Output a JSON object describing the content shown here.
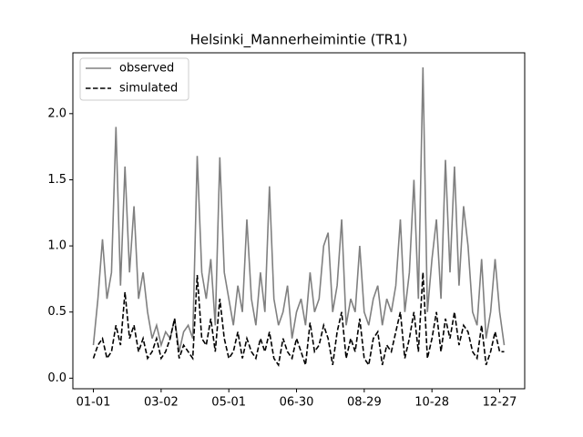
{
  "chart_data": {
    "type": "line",
    "title": "Helsinki_Mannerheimintie (TR1)",
    "x": [
      "01-01",
      "01-05",
      "01-09",
      "01-13",
      "01-17",
      "01-21",
      "01-25",
      "01-29",
      "02-02",
      "02-06",
      "02-10",
      "02-14",
      "02-18",
      "02-22",
      "02-26",
      "03-02",
      "03-06",
      "03-10",
      "03-14",
      "03-18",
      "03-22",
      "03-26",
      "03-30",
      "04-03",
      "04-07",
      "04-11",
      "04-15",
      "04-19",
      "04-23",
      "04-27",
      "05-01",
      "05-05",
      "05-09",
      "05-13",
      "05-17",
      "05-21",
      "05-25",
      "05-29",
      "06-02",
      "06-06",
      "06-10",
      "06-14",
      "06-18",
      "06-22",
      "06-26",
      "06-30",
      "07-04",
      "07-08",
      "07-12",
      "07-16",
      "07-20",
      "07-24",
      "07-28",
      "08-01",
      "08-05",
      "08-09",
      "08-13",
      "08-17",
      "08-21",
      "08-25",
      "08-29",
      "09-02",
      "09-06",
      "09-10",
      "09-14",
      "09-18",
      "09-22",
      "09-26",
      "09-30",
      "10-04",
      "10-08",
      "10-12",
      "10-16",
      "10-20",
      "10-24",
      "10-28",
      "11-01",
      "11-05",
      "11-09",
      "11-13",
      "11-17",
      "11-21",
      "11-25",
      "11-29",
      "12-03",
      "12-07",
      "12-11",
      "12-15",
      "12-19",
      "12-23",
      "12-27",
      "12-31"
    ],
    "series": [
      {
        "name": "observed",
        "color": "#808080",
        "linestyle": "solid",
        "values": [
          0.25,
          0.6,
          1.05,
          0.6,
          0.8,
          1.9,
          0.7,
          1.6,
          0.8,
          1.3,
          0.6,
          0.8,
          0.5,
          0.3,
          0.4,
          0.25,
          0.35,
          0.3,
          0.45,
          0.2,
          0.35,
          0.4,
          0.3,
          1.68,
          0.8,
          0.6,
          0.9,
          0.4,
          1.67,
          0.8,
          0.6,
          0.4,
          0.7,
          0.5,
          1.2,
          0.6,
          0.4,
          0.8,
          0.5,
          1.45,
          0.6,
          0.4,
          0.5,
          0.7,
          0.3,
          0.5,
          0.6,
          0.4,
          0.8,
          0.5,
          0.6,
          1.0,
          1.1,
          0.5,
          0.7,
          1.2,
          0.4,
          0.6,
          0.5,
          1.0,
          0.5,
          0.4,
          0.6,
          0.7,
          0.4,
          0.6,
          0.5,
          0.7,
          1.2,
          0.5,
          0.8,
          1.5,
          0.6,
          2.35,
          0.5,
          0.9,
          1.2,
          0.6,
          1.65,
          0.8,
          1.6,
          0.7,
          1.3,
          1.0,
          0.5,
          0.4,
          0.9,
          0.3,
          0.5,
          0.9,
          0.5,
          0.25
        ]
      },
      {
        "name": "simulated",
        "color": "#000000",
        "linestyle": "dashed",
        "values": [
          0.15,
          0.25,
          0.3,
          0.15,
          0.2,
          0.4,
          0.25,
          0.65,
          0.3,
          0.4,
          0.2,
          0.3,
          0.15,
          0.2,
          0.3,
          0.15,
          0.2,
          0.3,
          0.45,
          0.15,
          0.25,
          0.2,
          0.15,
          0.78,
          0.3,
          0.25,
          0.45,
          0.2,
          0.6,
          0.3,
          0.15,
          0.2,
          0.35,
          0.15,
          0.3,
          0.2,
          0.15,
          0.3,
          0.2,
          0.35,
          0.15,
          0.1,
          0.3,
          0.2,
          0.15,
          0.3,
          0.2,
          0.1,
          0.42,
          0.2,
          0.25,
          0.4,
          0.3,
          0.1,
          0.35,
          0.5,
          0.15,
          0.3,
          0.2,
          0.45,
          0.15,
          0.1,
          0.3,
          0.35,
          0.1,
          0.25,
          0.2,
          0.35,
          0.5,
          0.15,
          0.3,
          0.5,
          0.2,
          0.8,
          0.15,
          0.3,
          0.5,
          0.2,
          0.45,
          0.3,
          0.5,
          0.25,
          0.4,
          0.35,
          0.2,
          0.15,
          0.4,
          0.1,
          0.2,
          0.35,
          0.2,
          0.2
        ]
      }
    ],
    "xticks": [
      "01-01",
      "03-02",
      "05-01",
      "06-30",
      "08-29",
      "10-28",
      "12-27"
    ],
    "ylim": [
      -0.08,
      2.46
    ],
    "yticks": [
      {
        "value": 0,
        "label": "0.0"
      },
      0.5,
      {
        "value": 1,
        "label": "1.0"
      },
      1.5,
      {
        "value": 2,
        "label": "2.0"
      }
    ],
    "legend": "upper left"
  }
}
